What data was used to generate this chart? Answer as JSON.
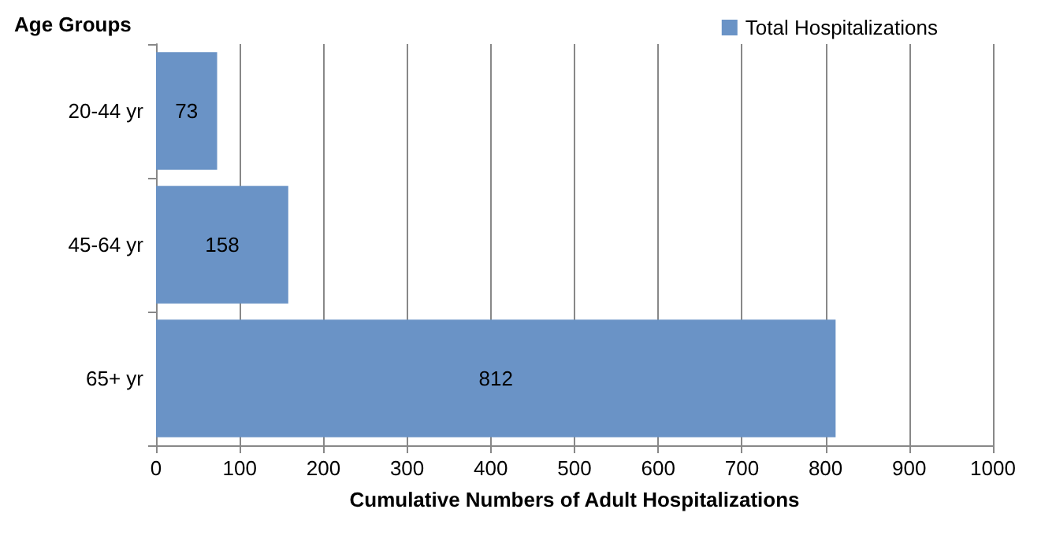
{
  "chart_data": {
    "type": "bar",
    "orientation": "horizontal",
    "ylabel": "Age Groups",
    "xlabel": "Cumulative Numbers of Adult Hospitalizations",
    "categories": [
      "20-44 yr",
      "45-64 yr",
      "65+ yr"
    ],
    "series": [
      {
        "name": "Total Hospitalizations",
        "color": "#6a93c6",
        "values": [
          73,
          158,
          812
        ]
      }
    ],
    "xlim": [
      0,
      1000
    ],
    "xticks": [
      0,
      100,
      200,
      300,
      400,
      500,
      600,
      700,
      800,
      900,
      1000
    ],
    "grid": "x",
    "legend": "top right",
    "data_labels": true
  }
}
